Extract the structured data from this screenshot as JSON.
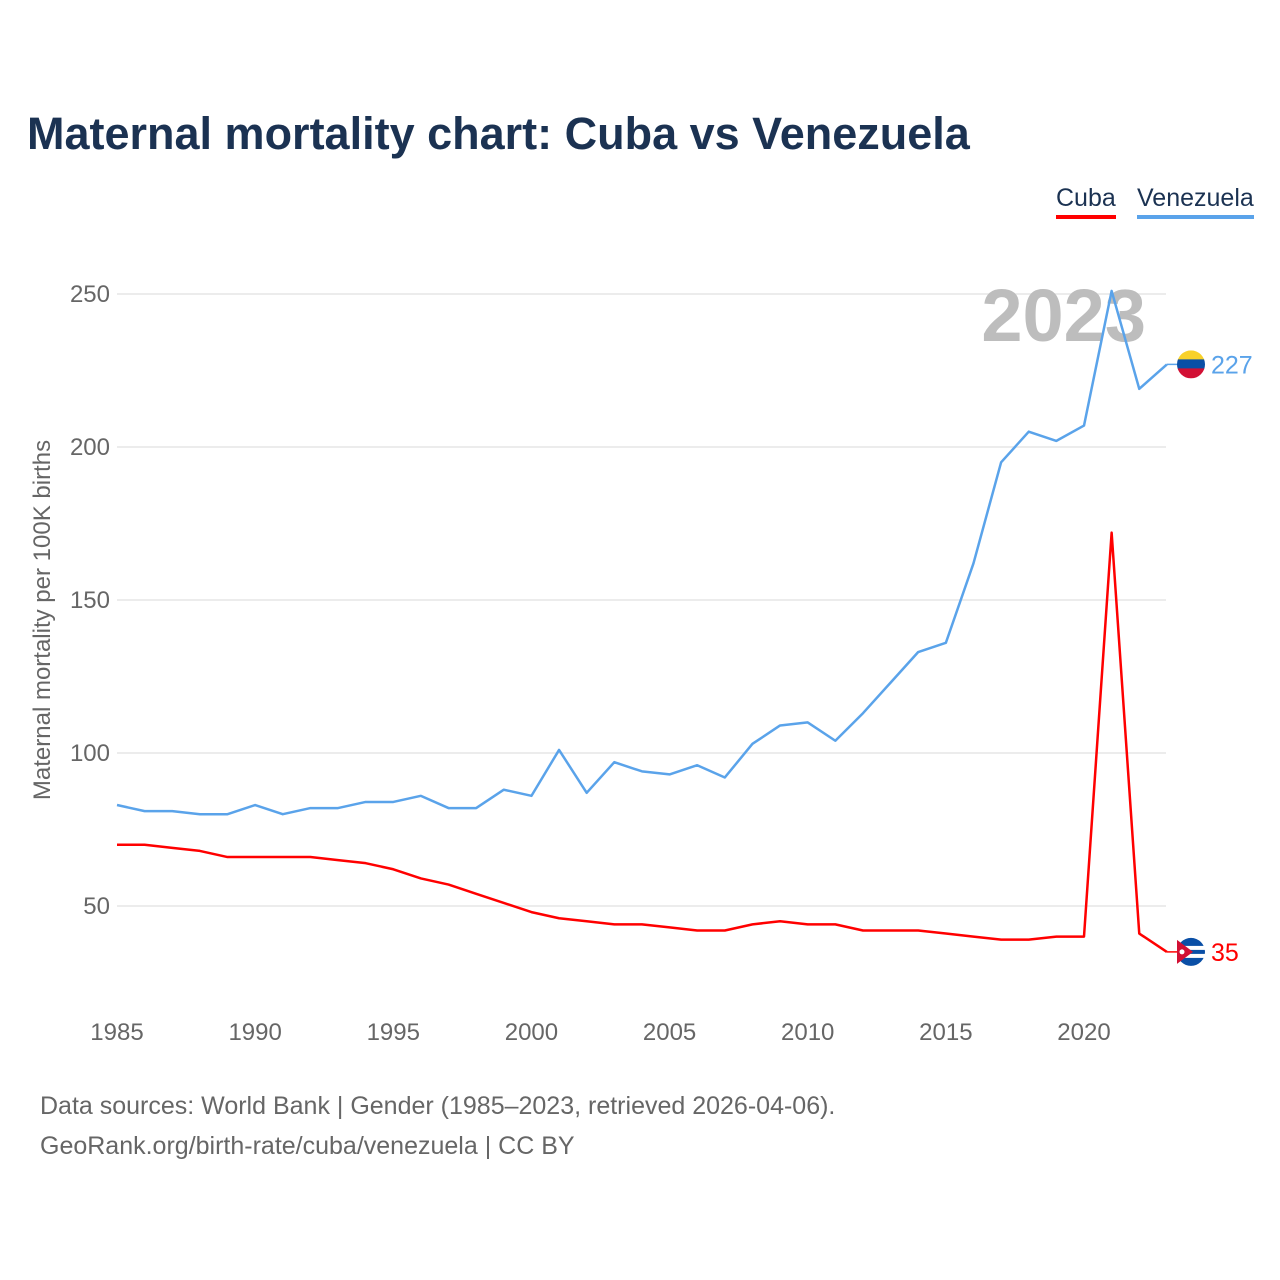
{
  "title": "Maternal mortality chart: Cuba vs Venezuela",
  "footer": {
    "line1": "Data sources: World Bank | Gender (1985–2023, retrieved 2026-04-06).",
    "line2": "GeoRank.org/birth-rate/cuba/venezuela | CC BY"
  },
  "chart_data": {
    "type": "line",
    "title": "Maternal mortality chart: Cuba vs Venezuela",
    "xlabel": "",
    "ylabel": "Maternal mortality per 100K births",
    "year_label": "2023",
    "x": [
      1985,
      1986,
      1987,
      1988,
      1989,
      1990,
      1991,
      1992,
      1993,
      1994,
      1995,
      1996,
      1997,
      1998,
      1999,
      2000,
      2001,
      2002,
      2003,
      2004,
      2005,
      2006,
      2007,
      2008,
      2009,
      2010,
      2011,
      2012,
      2013,
      2014,
      2015,
      2016,
      2017,
      2018,
      2019,
      2020,
      2021,
      2022,
      2023
    ],
    "xticks": [
      1985,
      1990,
      1995,
      2000,
      2005,
      2010,
      2015,
      2020
    ],
    "yticks": [
      50,
      100,
      150,
      200,
      250
    ],
    "xlim": [
      1985,
      2023
    ],
    "ylim": [
      20,
      260
    ],
    "grid": true,
    "legend_placement": "top-right",
    "series": [
      {
        "name": "Cuba",
        "color": "#ff0000",
        "end_label": "35",
        "flag": "cuba-flag",
        "values": [
          70,
          70,
          69,
          68,
          66,
          66,
          66,
          66,
          65,
          64,
          62,
          59,
          57,
          54,
          51,
          48,
          46,
          45,
          44,
          44,
          43,
          42,
          42,
          44,
          45,
          44,
          44,
          42,
          42,
          42,
          41,
          40,
          39,
          39,
          40,
          40,
          172,
          41,
          35
        ]
      },
      {
        "name": "Venezuela",
        "color": "#5aa3ea",
        "end_label": "227",
        "flag": "venezuela-flag",
        "values": [
          83,
          81,
          81,
          80,
          80,
          83,
          80,
          82,
          82,
          84,
          84,
          86,
          82,
          82,
          88,
          86,
          101,
          87,
          97,
          94,
          93,
          96,
          92,
          103,
          109,
          110,
          104,
          113,
          123,
          133,
          136,
          162,
          195,
          205,
          202,
          207,
          251,
          219,
          227
        ]
      }
    ]
  }
}
